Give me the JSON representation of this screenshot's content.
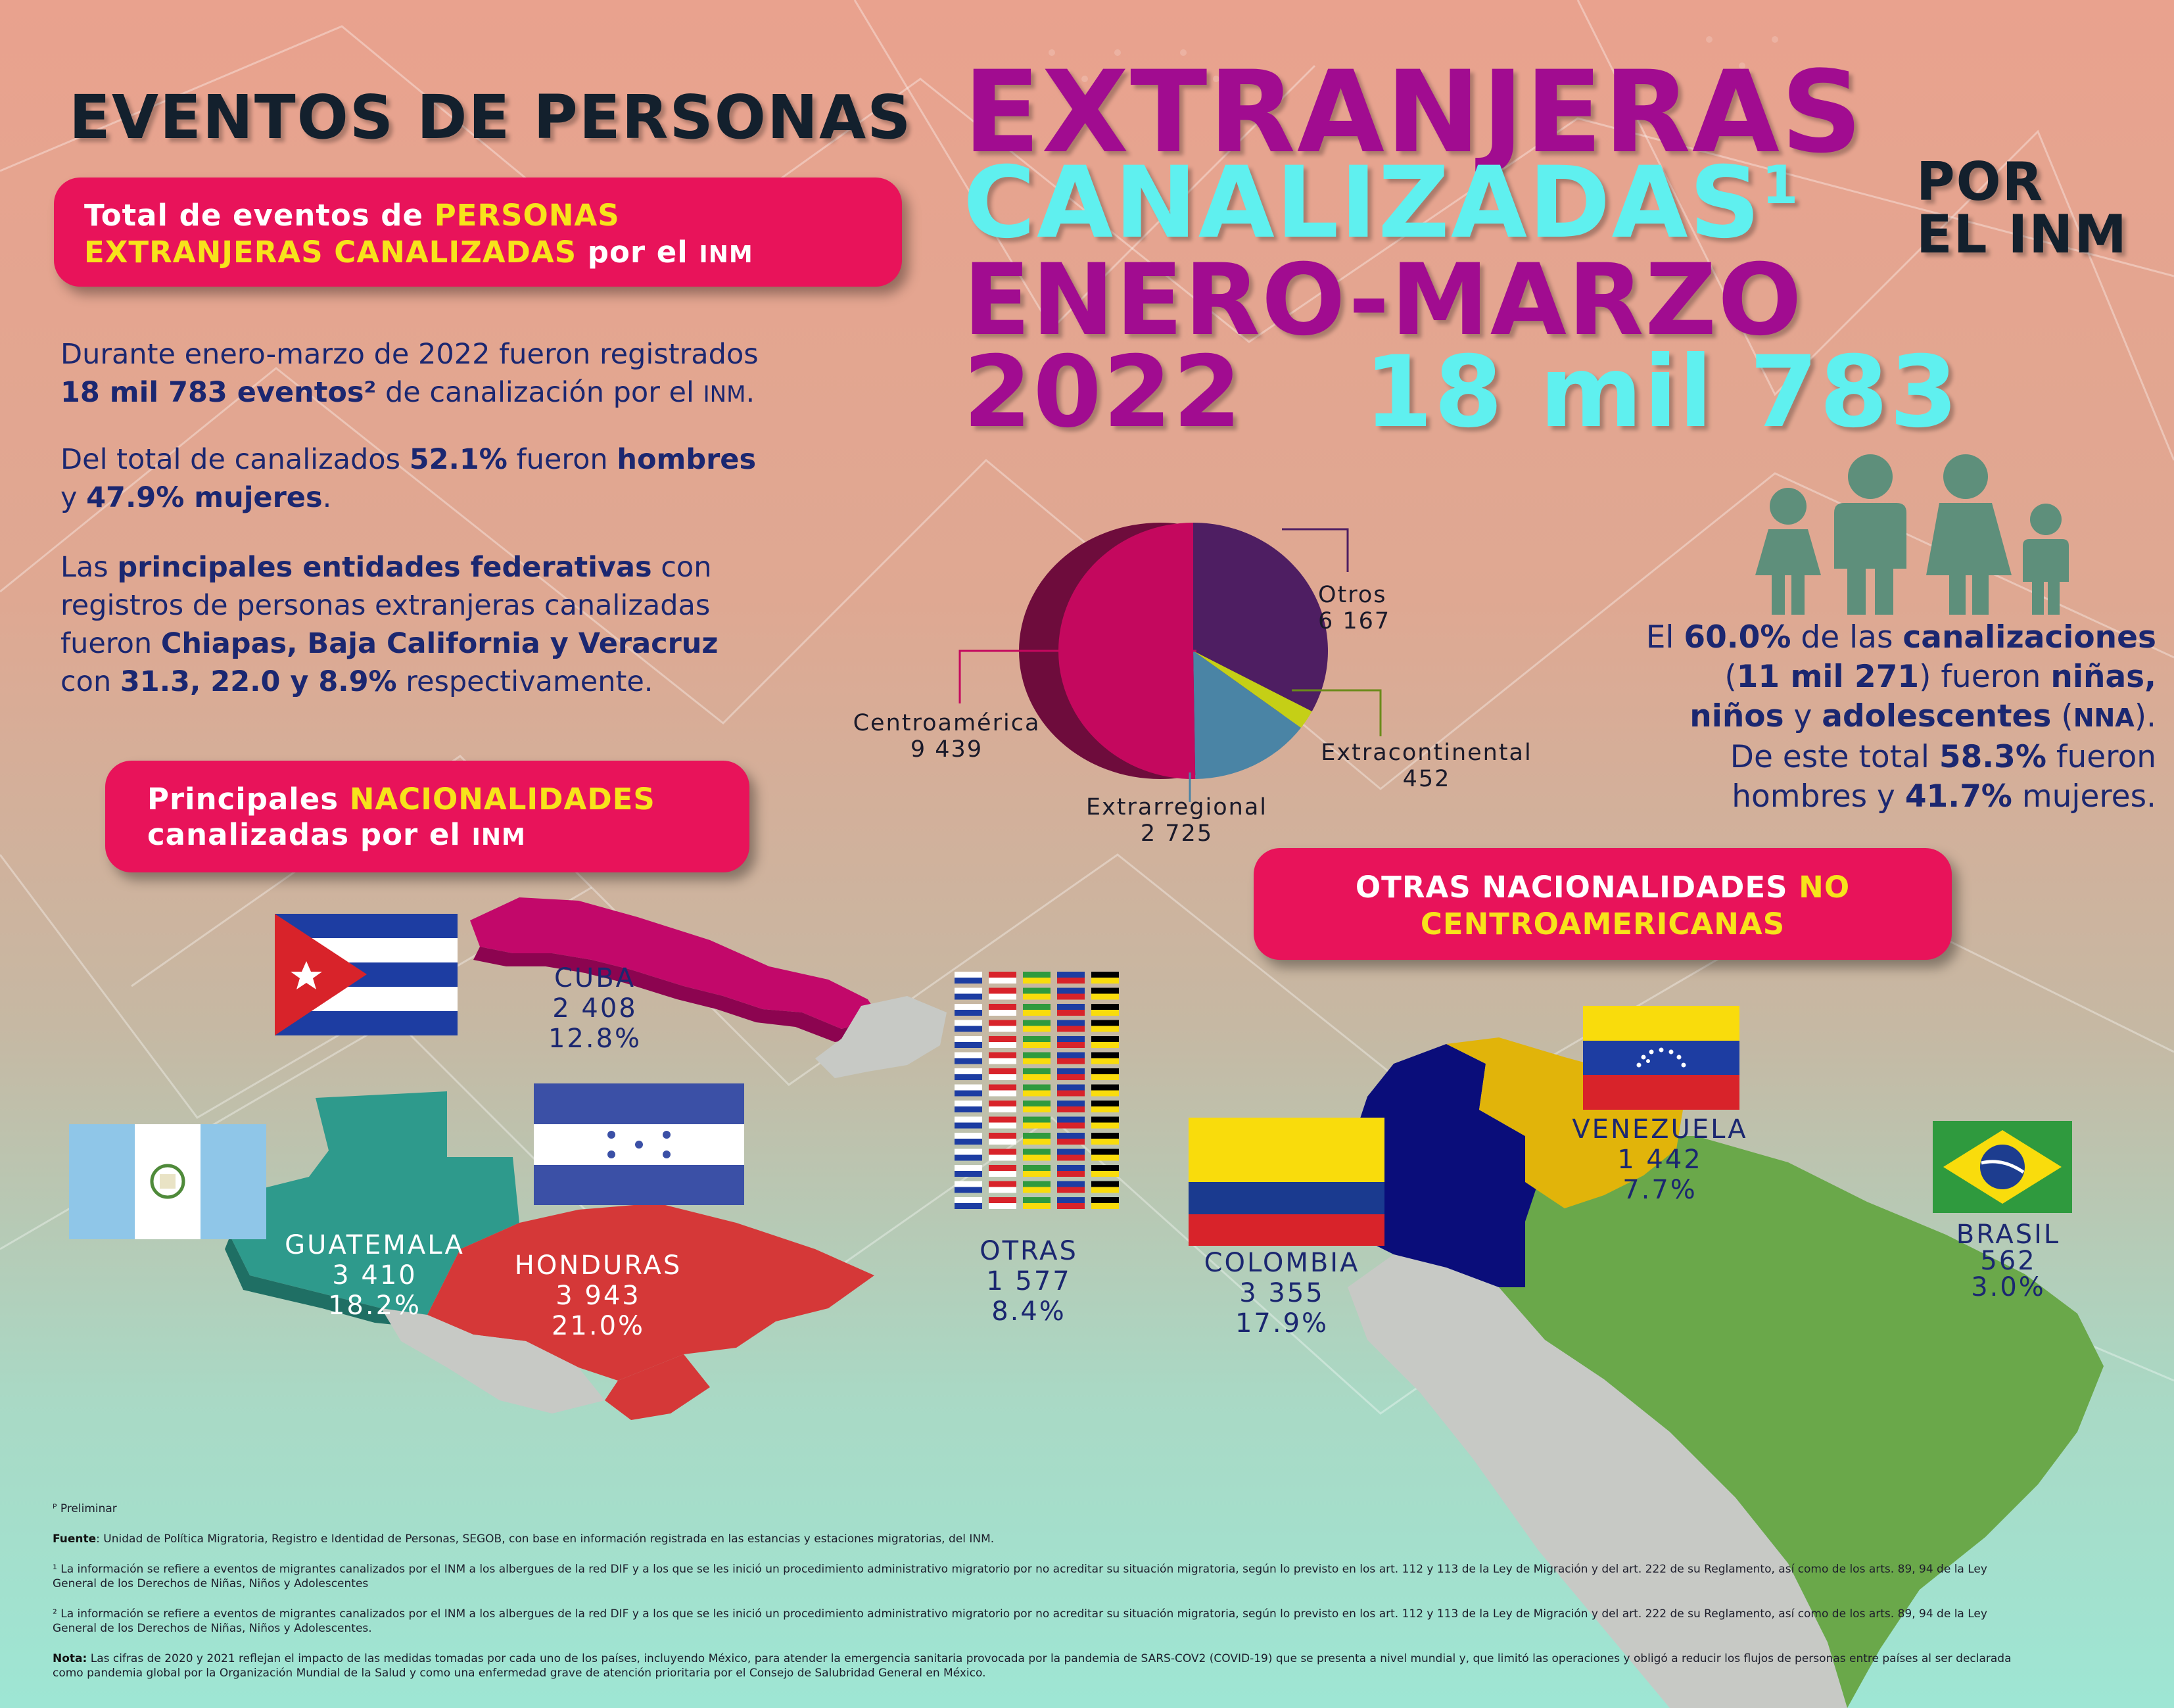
{
  "header": {
    "title_line1": "EVENTOS DE PERSONAS",
    "title_extranjeras": "EXTRANJERAS",
    "title_canalizadas": "CANALIZADAS",
    "title_sup": "1",
    "title_por": "POR",
    "title_el_inm": "EL INM",
    "title_periodo": "ENERO-MARZO",
    "title_year": "2022",
    "total": "18 mil 783"
  },
  "total_box": {
    "text_a": "Total de eventos de ",
    "text_b": "PERSONAS",
    "text_c": "EXTRANJERAS CANALIZADAS",
    "text_d": " por el ",
    "text_e": "INM"
  },
  "summary": {
    "p1_a": "Durante enero-marzo de 2022 fueron registrados",
    "p1_b": "18 mil  783 eventos²",
    "p1_c": " de canalización por el ",
    "p1_d": "INM",
    "p1_e": ".",
    "p2_a": "Del total de canalizados ",
    "p2_b": "52.1%",
    "p2_c": " fueron ",
    "p2_d": "hombres",
    "p2_e": "y ",
    "p2_f": "47.9% mujeres",
    "p2_g": ".",
    "p3_a": "Las ",
    "p3_b": "principales entidades federativas",
    "p3_c": " con",
    "p3_d": "registros de personas extranjeras canalizadas",
    "p3_e": "fueron ",
    "p3_f": "Chiapas, Baja California y Veracruz",
    "p3_g": "con ",
    "p3_h": "31.3, 22.0 y 8.9%",
    "p3_i": " respectivamente."
  },
  "chart_data": {
    "type": "pie",
    "categories": [
      "Otros",
      "Extracontinental",
      "Extrarregional",
      "Centroamérica"
    ],
    "values": [
      6167,
      452,
      2725,
      9439
    ],
    "value_labels": [
      "6 167",
      "452",
      "2 725",
      "9 439"
    ],
    "colors": [
      "#4e1e62",
      "#c5cf16",
      "#4a84a5",
      "#c4085e"
    ],
    "side_color": "#6e0c3c"
  },
  "nna": {
    "l1_a": "El ",
    "l1_b": "60.0%",
    "l1_c": " de las ",
    "l1_d": "canalizaciones",
    "l2_a": "(",
    "l2_b": "11 mil 271",
    "l2_c": ") fueron ",
    "l2_d": "niñas,",
    "l3_a": "niños",
    "l3_b": " y ",
    "l3_c": "adolescentes",
    "l3_d": " (",
    "l3_e": "NNA",
    "l3_f": ").",
    "l4_a": "De este total ",
    "l4_b": "58.3%",
    "l4_c": " fueron",
    "l5_a": "hombres y ",
    "l5_b": "41.7%",
    "l5_c": " mujeres."
  },
  "nacionalidades_box": {
    "a": "Principales ",
    "b": "NACIONALIDADES",
    "c": "canalizadas por el ",
    "d": "INM"
  },
  "otras_box": {
    "a": "OTRAS NACIONALIDADES ",
    "b": "NO",
    "c": "CENTROAMERICANAS"
  },
  "countries": [
    {
      "name": "CUBA",
      "count": "2 408",
      "pct": "12.8%"
    },
    {
      "name": "GUATEMALA",
      "count": "3 410",
      "pct": "18.2%"
    },
    {
      "name": "HONDURAS",
      "count": "3 943",
      "pct": "21.0%"
    },
    {
      "name": "OTRAS",
      "count": "1 577",
      "pct": "8.4%"
    },
    {
      "name": "COLOMBIA",
      "count": "3 355",
      "pct": "17.9%"
    },
    {
      "name": "VENEZUELA",
      "count": "1 442",
      "pct": "7.7%"
    },
    {
      "name": "BRASIL",
      "count": "562",
      "pct": "3.0%"
    }
  ],
  "notes": {
    "prelim": "ᴾ Preliminar",
    "fuente_label": "Fuente",
    "fuente": ": Unidad de Política Migratoria, Registro e Identidad de Personas, SEGOB, con base en información registrada en las estancias y estaciones migratorias, del INM.",
    "n1": "¹ La información se refiere a eventos de migrantes canalizados por el INM a los albergues de la red DIF y a los que se les inició un procedimiento administrativo migratorio por no acreditar su situación migratoria, según lo previsto en los art. 112 y 113 de la Ley de Migración y del art. 222 de su Reglamento, así como de los arts. 89, 94 de la Ley General de los Derechos de Niñas, Niños y Adolescentes",
    "n2": "² La información se refiere a eventos de migrantes canalizados por el INM a los albergues de la red DIF y a los que se les inició un procedimiento administrativo migratorio por no acreditar su situación migratoria, según lo previsto en los art. 112 y 113 de la Ley de Migración y del art. 222 de su Reglamento, así como de los arts. 89, 94 de la Ley General de los Derechos de Niñas, Niños y Adolescentes.",
    "nota_label": "Nota:",
    "nota": " Las cifras de 2020 y 2021 reflejan el impacto de las medidas tomadas por cada uno de los países, incluyendo México, para atender la emergencia sanitaria provocada por la pandemia de SARS-COV2 (COVID-19) que se presenta a nivel mundial y, que limitó las operaciones y obligó a reducir los flujos de personas entre países al ser declarada como pandemia global por la Organización Mundial de la Salud y como una enfermedad grave de atención prioritaria por el Consejo de Salubridad General en México."
  }
}
